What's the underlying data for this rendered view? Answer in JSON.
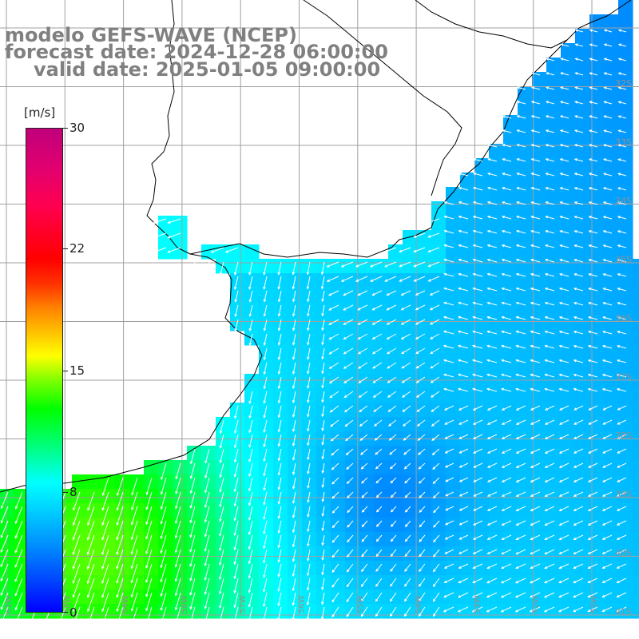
{
  "header": {
    "title": "modelo GEFS-WAVE (NCEP)",
    "forecast": "forecast date: 2024-12-28 06:00:00",
    "valid": "valid date: 2025-01-05 09:00:00"
  },
  "colorbar": {
    "unit": "[m/s]",
    "ticks": [
      "30",
      "22",
      "15",
      "8",
      "0"
    ]
  },
  "lat_labels": [
    "32S",
    "33S",
    "34S",
    "35S",
    "36S",
    "37S",
    "38S",
    "39S",
    "40S",
    "41S"
  ],
  "lon_labels": [
    "61W",
    "60W",
    "59W",
    "58W",
    "57W",
    "56W",
    "55W",
    "54W",
    "53W",
    "52W",
    "51W"
  ],
  "colors": {
    "land": "#ffffff",
    "grid": "#a0a0a0",
    "coast": "#000000",
    "arrows": "#ffffff",
    "text": "#808080"
  }
}
